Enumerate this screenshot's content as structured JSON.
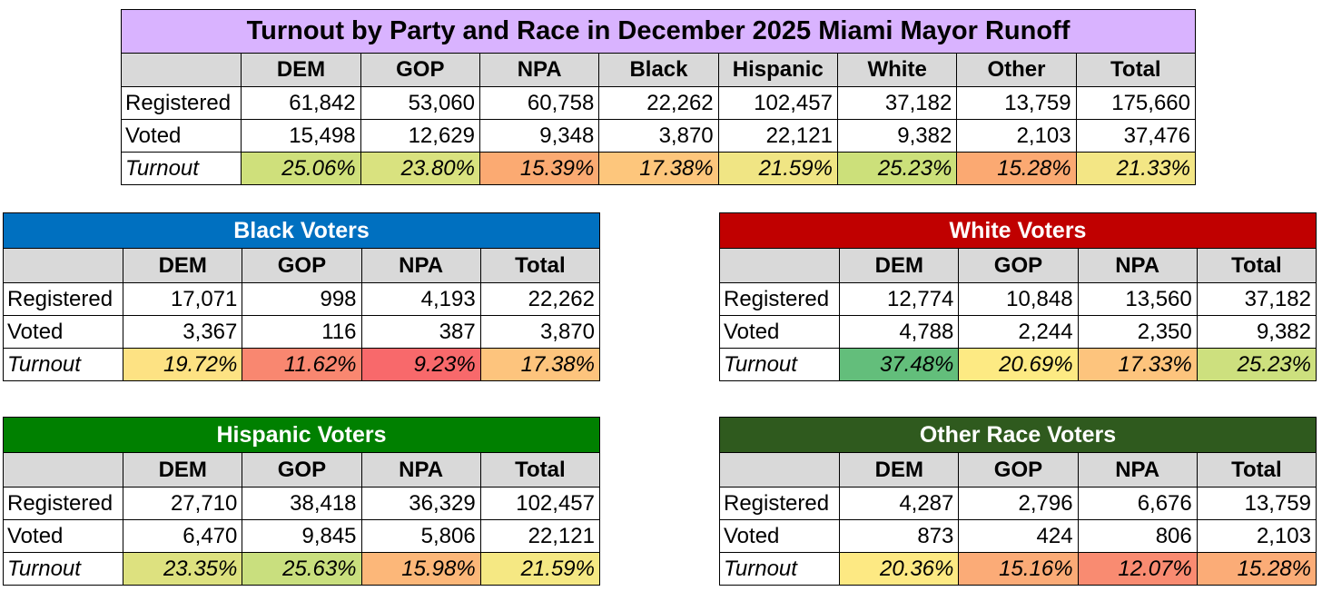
{
  "main": {
    "title": "Turnout by Party and Race in December 2025 Miami Mayor Runoff",
    "headers": [
      "DEM",
      "GOP",
      "NPA",
      "Black",
      "Hispanic",
      "White",
      "Other",
      "Total"
    ],
    "rows": [
      {
        "label": "Registered",
        "cells": [
          "61,842",
          "53,060",
          "60,758",
          "22,262",
          "102,457",
          "37,182",
          "13,759",
          "175,660"
        ]
      },
      {
        "label": "Voted",
        "cells": [
          "15,498",
          "12,629",
          "9,348",
          "3,870",
          "22,121",
          "9,382",
          "2,103",
          "37,476"
        ]
      },
      {
        "label": "Turnout",
        "cells": [
          "25.06%",
          "23.80%",
          "15.39%",
          "17.38%",
          "21.59%",
          "25.23%",
          "15.28%",
          "21.33%"
        ],
        "colors": [
          "#cfe07b",
          "#d9e27f",
          "#fbaa72",
          "#fdc67c",
          "#f0e584",
          "#cce07a",
          "#fba972",
          "#f3e685"
        ]
      }
    ],
    "title_color": "#d9b3ff"
  },
  "black": {
    "title": "Black Voters",
    "title_color": "#0070c0",
    "headers": [
      "DEM",
      "GOP",
      "NPA",
      "Total"
    ],
    "rows": [
      {
        "label": "Registered",
        "cells": [
          "17,071",
          "998",
          "4,193",
          "22,262"
        ]
      },
      {
        "label": "Voted",
        "cells": [
          "3,367",
          "116",
          "387",
          "3,870"
        ]
      },
      {
        "label": "Turnout",
        "cells": [
          "19.72%",
          "11.62%",
          "9.23%",
          "17.38%"
        ],
        "colors": [
          "#fde283",
          "#f98770",
          "#f8696b",
          "#fdc47d"
        ]
      }
    ]
  },
  "white": {
    "title": "White Voters",
    "title_color": "#c00000",
    "headers": [
      "DEM",
      "GOP",
      "NPA",
      "Total"
    ],
    "rows": [
      {
        "label": "Registered",
        "cells": [
          "12,774",
          "10,848",
          "13,560",
          "37,182"
        ]
      },
      {
        "label": "Voted",
        "cells": [
          "4,788",
          "2,244",
          "2,350",
          "9,382"
        ]
      },
      {
        "label": "Turnout",
        "cells": [
          "37.48%",
          "20.69%",
          "17.33%",
          "25.23%"
        ],
        "colors": [
          "#63be7b",
          "#fdea83",
          "#fdc47d",
          "#cde07e"
        ]
      }
    ]
  },
  "hisp": {
    "title": "Hispanic Voters",
    "title_color": "#008000",
    "headers": [
      "DEM",
      "GOP",
      "NPA",
      "Total"
    ],
    "rows": [
      {
        "label": "Registered",
        "cells": [
          "27,710",
          "38,418",
          "36,329",
          "102,457"
        ]
      },
      {
        "label": "Voted",
        "cells": [
          "6,470",
          "9,845",
          "5,806",
          "22,121"
        ]
      },
      {
        "label": "Turnout",
        "cells": [
          "23.35%",
          "25.63%",
          "15.98%",
          "21.59%"
        ],
        "colors": [
          "#dde17f",
          "#c9df7e",
          "#fcb779",
          "#f5e883"
        ]
      }
    ]
  },
  "other": {
    "title": "Other Race Voters",
    "title_color": "#2f5a1e",
    "headers": [
      "DEM",
      "GOP",
      "NPA",
      "Total"
    ],
    "rows": [
      {
        "label": "Registered",
        "cells": [
          "4,287",
          "2,796",
          "6,676",
          "13,759"
        ]
      },
      {
        "label": "Voted",
        "cells": [
          "873",
          "424",
          "806",
          "2,103"
        ]
      },
      {
        "label": "Turnout",
        "cells": [
          "20.36%",
          "15.16%",
          "12.07%",
          "15.28%"
        ],
        "colors": [
          "#fde983",
          "#fbab77",
          "#f98b71",
          "#fbac77"
        ]
      }
    ]
  }
}
